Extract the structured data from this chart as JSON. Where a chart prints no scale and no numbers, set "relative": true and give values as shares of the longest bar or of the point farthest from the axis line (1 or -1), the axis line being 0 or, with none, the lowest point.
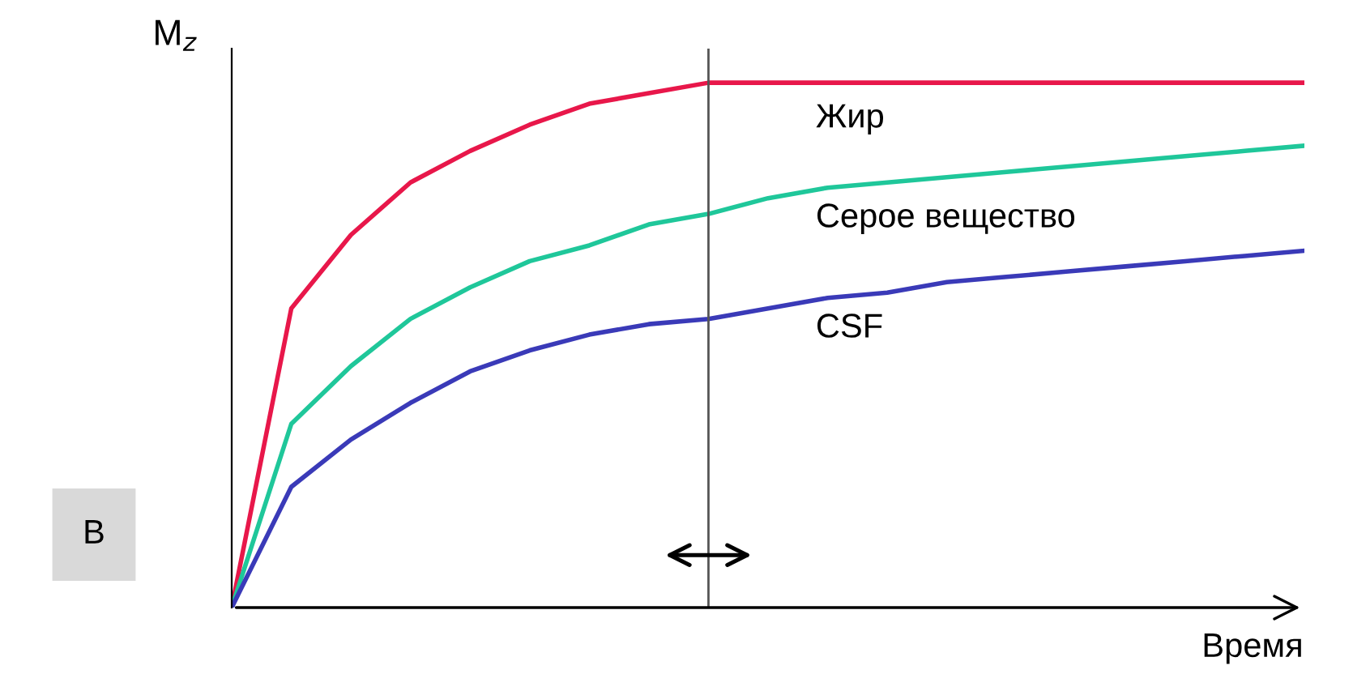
{
  "chart_data": {
    "type": "line",
    "relative": true,
    "ylabel": "M$_{z}$",
    "xlabel": "Время",
    "categories": [
      null,
      null,
      null,
      null,
      null,
      null,
      null,
      null,
      null,
      null,
      null,
      null,
      null,
      null,
      null,
      null,
      null,
      null,
      null
    ],
    "series": [
      {
        "name": "Жир",
        "color": "#e8174a",
        "values": [
          0,
          0.57,
          0.71,
          0.81,
          0.87,
          0.92,
          0.96,
          0.98,
          1,
          1,
          1,
          1,
          1,
          1,
          1,
          1,
          1,
          1,
          1
        ]
      },
      {
        "name": "Серое вещество",
        "color": "#1fc79a",
        "values": [
          0,
          0.35,
          0.46,
          0.55,
          0.61,
          0.66,
          0.69,
          0.73,
          0.75,
          0.78,
          0.8,
          0.81,
          0.82,
          0.83,
          0.84,
          0.85,
          0.86,
          0.87,
          0.88
        ]
      },
      {
        "name": "CSF",
        "color": "#3a3ab8",
        "values": [
          0,
          0.23,
          0.32,
          0.39,
          0.45,
          0.49,
          0.52,
          0.54,
          0.55,
          0.57,
          0.59,
          0.6,
          0.62,
          0.63,
          0.64,
          0.65,
          0.66,
          0.67,
          0.68
        ]
      }
    ],
    "annotations": [
      "В"
    ],
    "legend": false,
    "marker": "none",
    "line_style": "solid"
  }
}
